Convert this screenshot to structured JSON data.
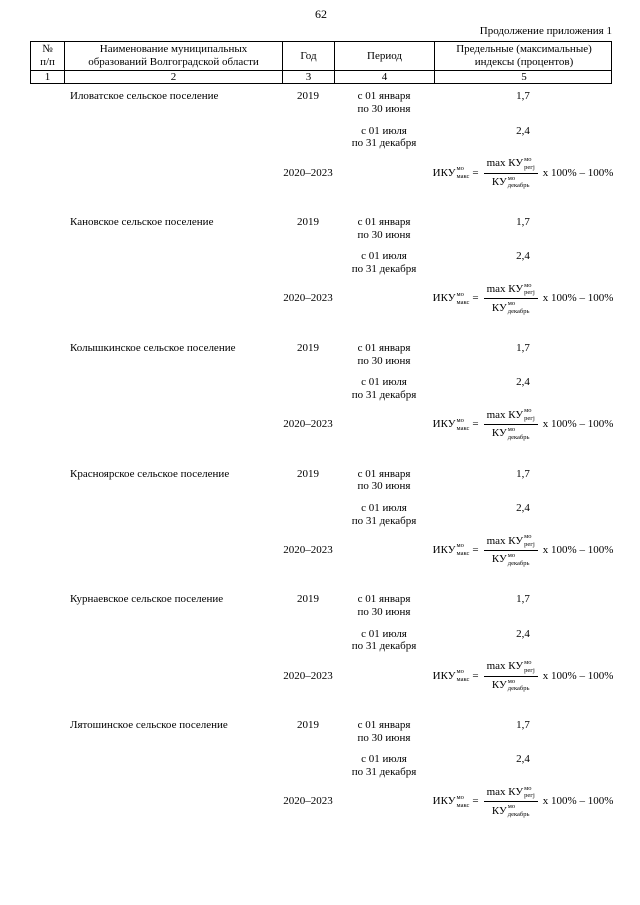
{
  "page": {
    "number": "62",
    "continuation": "Продолжение приложения 1"
  },
  "table": {
    "header": {
      "col1_line1": "№",
      "col1_line2": "п/п",
      "col2_line1": "Наименование муниципальных",
      "col2_line2": "образований Волгоградской области",
      "col3": "Год",
      "col4": "Период",
      "col5_line1": "Предельные (максимальные)",
      "col5_line2": "индексы (процентов)",
      "numbers": [
        "1",
        "2",
        "3",
        "4",
        "5"
      ]
    },
    "formula": {
      "lhs": "ИКУ",
      "lhs_sup": "мо",
      "lhs_sub": "макс",
      "eq": "=",
      "num_text": "max КУ",
      "num_sup": "мо",
      "num_sub": "регj",
      "den_text": "КУ",
      "den_sup": "мо",
      "den_sub": "декабрь",
      "tail": "x 100% – 100%"
    },
    "settlements": [
      {
        "name": "Иловатское сельское поселение",
        "rows": [
          {
            "year": "2019",
            "period_line1": "с 01 января",
            "period_line2": "по 30 июня",
            "index": "1,7"
          },
          {
            "period_line1": "с 01 июля",
            "period_line2": "по 31 декабря",
            "index": "2,4"
          },
          {
            "year": "2020–2023"
          }
        ]
      },
      {
        "name": "Кановское сельское поселение",
        "rows": [
          {
            "year": "2019",
            "period_line1": "с 01 января",
            "period_line2": "по 30 июня",
            "index": "1,7"
          },
          {
            "period_line1": "с 01 июля",
            "period_line2": "по 31 декабря",
            "index": "2,4"
          },
          {
            "year": "2020–2023"
          }
        ]
      },
      {
        "name": "Колышкинское сельское поселение",
        "rows": [
          {
            "year": "2019",
            "period_line1": "с 01 января",
            "period_line2": "по 30 июня",
            "index": "1,7"
          },
          {
            "period_line1": "с 01 июля",
            "period_line2": "по 31 декабря",
            "index": "2,4"
          },
          {
            "year": "2020–2023"
          }
        ]
      },
      {
        "name": "Красноярское сельское поселение",
        "rows": [
          {
            "year": "2019",
            "period_line1": "с 01 января",
            "period_line2": "по 30 июня",
            "index": "1,7"
          },
          {
            "period_line1": "с 01 июля",
            "period_line2": "по 31 декабря",
            "index": "2,4"
          },
          {
            "year": "2020–2023"
          }
        ]
      },
      {
        "name": "Курнаевское сельское поселение",
        "rows": [
          {
            "year": "2019",
            "period_line1": "с 01 января",
            "period_line2": "по 30 июня",
            "index": "1,7"
          },
          {
            "period_line1": "с 01 июля",
            "period_line2": "по 31 декабря",
            "index": "2,4"
          },
          {
            "year": "2020–2023"
          }
        ]
      },
      {
        "name": "Лятошинское сельское поселение",
        "rows": [
          {
            "year": "2019",
            "period_line1": "с 01 января",
            "period_line2": "по 30 июня",
            "index": "1,7"
          },
          {
            "period_line1": "с 01 июля",
            "period_line2": "по 31 декабря",
            "index": "2,4"
          },
          {
            "year": "2020–2023"
          }
        ]
      }
    ]
  }
}
